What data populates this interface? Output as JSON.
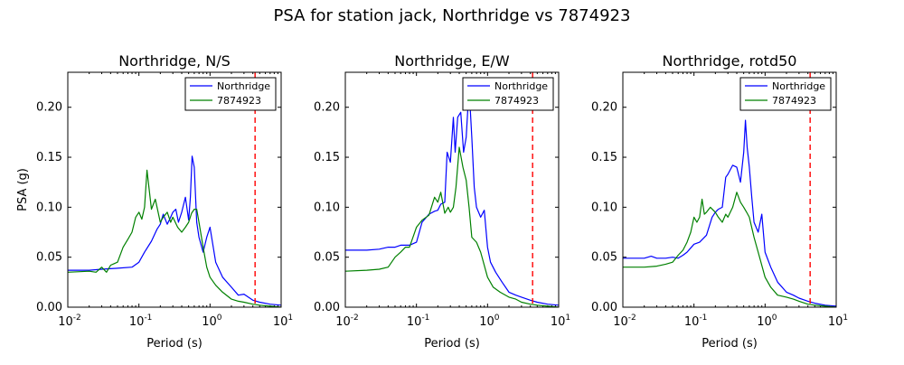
{
  "figure": {
    "title": "PSA for station jack, Northridge vs 7874923",
    "colors": {
      "series1": "#0000ff",
      "series2": "#008000",
      "marker": "#ff0000"
    }
  },
  "chart_data": [
    {
      "type": "line",
      "title": "Northridge, N/S",
      "xlabel": "Period (s)",
      "ylabel": "PSA (g)",
      "xscale": "log",
      "xlim": [
        0.01,
        10
      ],
      "ylim": [
        0.0,
        0.235
      ],
      "xticks": [
        {
          "base": "10",
          "exp": "-2",
          "value": 0.01
        },
        {
          "base": "10",
          "exp": "-1",
          "value": 0.1
        },
        {
          "base": "10",
          "exp": "0",
          "value": 1
        },
        {
          "base": "10",
          "exp": "1",
          "value": 10
        }
      ],
      "yticks": [
        "0.00",
        "0.05",
        "0.10",
        "0.15",
        "0.20"
      ],
      "vline": 4.3,
      "legend": "top-right",
      "series": [
        {
          "name": "Northridge",
          "color": "#0000ff",
          "x": [
            0.01,
            0.02,
            0.03,
            0.05,
            0.08,
            0.1,
            0.12,
            0.15,
            0.18,
            0.2,
            0.22,
            0.25,
            0.28,
            0.3,
            0.33,
            0.36,
            0.4,
            0.45,
            0.5,
            0.53,
            0.56,
            0.6,
            0.65,
            0.7,
            0.8,
            0.9,
            1.0,
            1.2,
            1.5,
            2.0,
            2.5,
            3.0,
            4.0,
            5.0,
            7.0,
            10.0
          ],
          "y": [
            0.037,
            0.037,
            0.038,
            0.039,
            0.04,
            0.045,
            0.055,
            0.066,
            0.078,
            0.083,
            0.093,
            0.083,
            0.09,
            0.095,
            0.098,
            0.085,
            0.095,
            0.11,
            0.087,
            0.11,
            0.151,
            0.14,
            0.085,
            0.07,
            0.055,
            0.07,
            0.08,
            0.045,
            0.03,
            0.02,
            0.012,
            0.013,
            0.007,
            0.005,
            0.003,
            0.002
          ]
        },
        {
          "name": "7874923",
          "color": "#008000",
          "x": [
            0.01,
            0.02,
            0.025,
            0.03,
            0.035,
            0.04,
            0.05,
            0.06,
            0.07,
            0.08,
            0.09,
            0.1,
            0.11,
            0.12,
            0.13,
            0.15,
            0.17,
            0.2,
            0.22,
            0.25,
            0.28,
            0.3,
            0.35,
            0.4,
            0.45,
            0.5,
            0.55,
            0.6,
            0.65,
            0.7,
            0.8,
            0.9,
            1.0,
            1.2,
            1.5,
            2.0,
            2.5,
            3.0,
            4.0,
            5.0,
            7.0,
            10.0
          ],
          "y": [
            0.035,
            0.036,
            0.035,
            0.04,
            0.035,
            0.042,
            0.045,
            0.06,
            0.068,
            0.075,
            0.09,
            0.095,
            0.088,
            0.1,
            0.137,
            0.098,
            0.108,
            0.085,
            0.09,
            0.095,
            0.085,
            0.09,
            0.08,
            0.075,
            0.08,
            0.085,
            0.094,
            0.098,
            0.098,
            0.085,
            0.06,
            0.04,
            0.03,
            0.022,
            0.015,
            0.008,
            0.006,
            0.005,
            0.003,
            0.002,
            0.001,
            0.0
          ]
        }
      ]
    },
    {
      "type": "line",
      "title": "Northridge, E/W",
      "xlabel": "Period (s)",
      "xscale": "log",
      "xlim": [
        0.01,
        10
      ],
      "ylim": [
        0.0,
        0.235
      ],
      "xticks": [
        {
          "base": "10",
          "exp": "-2",
          "value": 0.01
        },
        {
          "base": "10",
          "exp": "-1",
          "value": 0.1
        },
        {
          "base": "10",
          "exp": "0",
          "value": 1
        },
        {
          "base": "10",
          "exp": "1",
          "value": 10
        }
      ],
      "yticks": [
        "0.00",
        "0.05",
        "0.10",
        "0.15",
        "0.20"
      ],
      "vline": 4.3,
      "legend": "top-right",
      "series": [
        {
          "name": "Northridge",
          "color": "#0000ff",
          "x": [
            0.01,
            0.02,
            0.03,
            0.04,
            0.05,
            0.06,
            0.08,
            0.1,
            0.12,
            0.15,
            0.18,
            0.2,
            0.22,
            0.25,
            0.27,
            0.3,
            0.33,
            0.35,
            0.38,
            0.42,
            0.46,
            0.5,
            0.55,
            0.6,
            0.65,
            0.7,
            0.8,
            0.9,
            1.0,
            1.1,
            1.3,
            1.6,
            2.0,
            2.5,
            3.0,
            4.0,
            5.0,
            7.0,
            10.0
          ],
          "y": [
            0.057,
            0.057,
            0.058,
            0.06,
            0.06,
            0.062,
            0.062,
            0.065,
            0.085,
            0.093,
            0.096,
            0.097,
            0.103,
            0.105,
            0.155,
            0.145,
            0.19,
            0.155,
            0.19,
            0.195,
            0.155,
            0.17,
            0.22,
            0.17,
            0.12,
            0.1,
            0.09,
            0.097,
            0.06,
            0.045,
            0.035,
            0.025,
            0.015,
            0.012,
            0.01,
            0.007,
            0.005,
            0.003,
            0.002
          ]
        },
        {
          "name": "7874923",
          "color": "#008000",
          "x": [
            0.01,
            0.02,
            0.03,
            0.04,
            0.05,
            0.06,
            0.07,
            0.08,
            0.1,
            0.12,
            0.15,
            0.18,
            0.2,
            0.22,
            0.25,
            0.28,
            0.3,
            0.33,
            0.36,
            0.4,
            0.45,
            0.5,
            0.55,
            0.6,
            0.7,
            0.8,
            1.0,
            1.2,
            1.5,
            2.0,
            2.5,
            3.0,
            4.0,
            5.0,
            7.0,
            10.0
          ],
          "y": [
            0.036,
            0.037,
            0.038,
            0.04,
            0.05,
            0.055,
            0.06,
            0.06,
            0.08,
            0.087,
            0.092,
            0.11,
            0.105,
            0.115,
            0.094,
            0.1,
            0.095,
            0.1,
            0.12,
            0.16,
            0.14,
            0.127,
            0.1,
            0.07,
            0.065,
            0.055,
            0.03,
            0.02,
            0.015,
            0.01,
            0.008,
            0.005,
            0.003,
            0.002,
            0.001,
            0.0
          ]
        }
      ]
    },
    {
      "type": "line",
      "title": "Northridge, rotd50",
      "xlabel": "Period (s)",
      "xscale": "log",
      "xlim": [
        0.01,
        10
      ],
      "ylim": [
        0.0,
        0.235
      ],
      "xticks": [
        {
          "base": "10",
          "exp": "-2",
          "value": 0.01
        },
        {
          "base": "10",
          "exp": "-1",
          "value": 0.1
        },
        {
          "base": "10",
          "exp": "0",
          "value": 1
        },
        {
          "base": "10",
          "exp": "1",
          "value": 10
        }
      ],
      "yticks": [
        "0.00",
        "0.05",
        "0.10",
        "0.15",
        "0.20"
      ],
      "vline": 4.3,
      "legend": "top-right",
      "series": [
        {
          "name": "Northridge",
          "color": "#0000ff",
          "x": [
            0.01,
            0.02,
            0.025,
            0.03,
            0.04,
            0.05,
            0.06,
            0.07,
            0.08,
            0.1,
            0.12,
            0.15,
            0.18,
            0.2,
            0.22,
            0.25,
            0.28,
            0.3,
            0.35,
            0.4,
            0.45,
            0.5,
            0.53,
            0.56,
            0.6,
            0.65,
            0.7,
            0.8,
            0.9,
            1.0,
            1.2,
            1.5,
            2.0,
            2.5,
            3.0,
            4.0,
            5.0,
            7.0,
            10.0
          ],
          "y": [
            0.049,
            0.049,
            0.051,
            0.049,
            0.049,
            0.05,
            0.049,
            0.052,
            0.055,
            0.063,
            0.065,
            0.072,
            0.09,
            0.095,
            0.098,
            0.1,
            0.13,
            0.133,
            0.142,
            0.14,
            0.125,
            0.155,
            0.187,
            0.16,
            0.14,
            0.11,
            0.085,
            0.075,
            0.093,
            0.055,
            0.04,
            0.025,
            0.015,
            0.012,
            0.009,
            0.006,
            0.004,
            0.002,
            0.001
          ]
        },
        {
          "name": "7874923",
          "color": "#008000",
          "x": [
            0.01,
            0.02,
            0.03,
            0.04,
            0.05,
            0.06,
            0.07,
            0.08,
            0.09,
            0.1,
            0.11,
            0.12,
            0.13,
            0.14,
            0.15,
            0.17,
            0.2,
            0.22,
            0.25,
            0.28,
            0.3,
            0.35,
            0.4,
            0.45,
            0.5,
            0.55,
            0.6,
            0.7,
            0.8,
            1.0,
            1.2,
            1.5,
            2.0,
            2.5,
            3.0,
            4.0,
            5.0,
            7.0,
            10.0
          ],
          "y": [
            0.04,
            0.04,
            0.041,
            0.043,
            0.045,
            0.052,
            0.057,
            0.065,
            0.075,
            0.09,
            0.085,
            0.09,
            0.108,
            0.093,
            0.095,
            0.1,
            0.095,
            0.09,
            0.085,
            0.093,
            0.09,
            0.1,
            0.115,
            0.105,
            0.1,
            0.095,
            0.09,
            0.07,
            0.055,
            0.03,
            0.02,
            0.012,
            0.01,
            0.008,
            0.006,
            0.003,
            0.002,
            0.001,
            0.0
          ]
        }
      ]
    }
  ]
}
